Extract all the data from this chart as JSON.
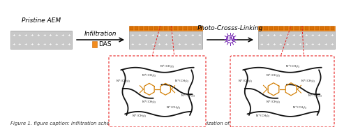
{
  "bg_color": "#ffffff",
  "membrane_gray": "#c8c8c8",
  "membrane_gray_edge": "#888888",
  "membrane_orange": "#f28c1e",
  "membrane_orange_edge": "#cc6600",
  "plus_color": "#ffffff",
  "arrow_color": "#222222",
  "red_dashed_color": "#e82020",
  "uv_color": "#7020b0",
  "label_pristine": "Pristine AEM",
  "label_infiltration": "Infiltration",
  "label_photo": "Photo-Crosss-Linking",
  "label_das": "DAS",
  "label_uv": "UV",
  "font_size_label": 6.5,
  "font_size_caption": 5.0,
  "caption": "Figure 1. figure caption: Infiltration scheme and cross-sectional (TEM) characterization of..."
}
